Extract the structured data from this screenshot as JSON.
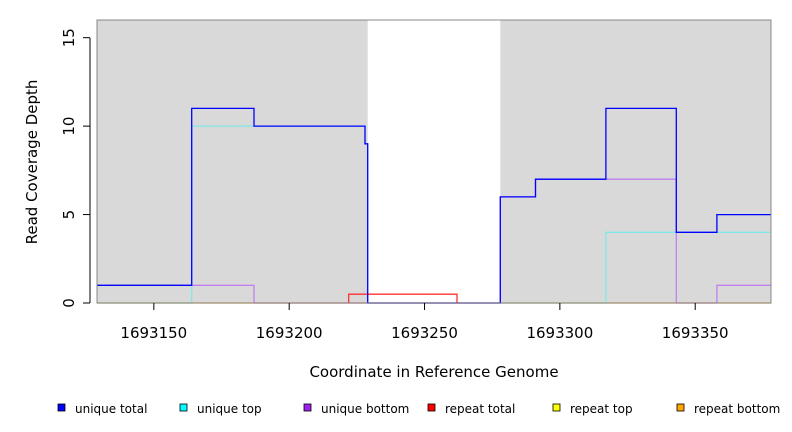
{
  "chart_data": {
    "type": "line",
    "title": "",
    "xlabel": "Coordinate in Reference Genome",
    "ylabel": "Read Coverage Depth",
    "xlim": [
      1693129,
      1693378
    ],
    "ylim": [
      0,
      16
    ],
    "x_ticks": [
      1693150,
      1693200,
      1693250,
      1693300,
      1693350
    ],
    "y_ticks": [
      0,
      5,
      10,
      15
    ],
    "shaded_regions": [
      [
        1693129,
        1693229
      ],
      [
        1693278,
        1693378
      ]
    ],
    "shade_color": "#d9d9d9",
    "legend_position": "bottom",
    "legend": [
      {
        "label": "unique total",
        "color": "#0000ff"
      },
      {
        "label": "unique top",
        "color": "#00ffff"
      },
      {
        "label": "unique bottom",
        "color": "#a020f0"
      },
      {
        "label": "repeat total",
        "color": "#ff0000"
      },
      {
        "label": "repeat top",
        "color": "#ffff00"
      },
      {
        "label": "repeat bottom",
        "color": "#ffa500"
      }
    ],
    "series": [
      {
        "name": "unique total",
        "color": "#0000ff",
        "points": [
          [
            1693129,
            1
          ],
          [
            1693164,
            1
          ],
          [
            1693164,
            11
          ],
          [
            1693187,
            11
          ],
          [
            1693187,
            10
          ],
          [
            1693228,
            10
          ],
          [
            1693228,
            9
          ],
          [
            1693229,
            9
          ],
          [
            1693229,
            0
          ],
          [
            1693278,
            0
          ],
          [
            1693278,
            6
          ],
          [
            1693291,
            6
          ],
          [
            1693291,
            7
          ],
          [
            1693317,
            7
          ],
          [
            1693317,
            11
          ],
          [
            1693343,
            11
          ],
          [
            1693343,
            4
          ],
          [
            1693358,
            4
          ],
          [
            1693358,
            5
          ],
          [
            1693378,
            5
          ]
        ]
      },
      {
        "name": "unique top",
        "color": "#80e8e8",
        "points": [
          [
            1693129,
            0
          ],
          [
            1693164,
            0
          ],
          [
            1693164,
            10
          ],
          [
            1693228,
            10
          ],
          [
            1693228,
            9
          ],
          [
            1693229,
            9
          ],
          [
            1693229,
            0
          ],
          [
            1693317,
            0
          ],
          [
            1693317,
            4
          ],
          [
            1693378,
            4
          ]
        ]
      },
      {
        "name": "unique bottom",
        "color": "#c080f0",
        "points": [
          [
            1693129,
            1
          ],
          [
            1693187,
            1
          ],
          [
            1693187,
            0
          ],
          [
            1693278,
            0
          ],
          [
            1693278,
            6
          ],
          [
            1693291,
            6
          ],
          [
            1693291,
            7
          ],
          [
            1693343,
            7
          ],
          [
            1693343,
            0
          ],
          [
            1693358,
            0
          ],
          [
            1693358,
            1
          ],
          [
            1693378,
            1
          ]
        ]
      },
      {
        "name": "repeat total",
        "color": "#ff3030",
        "points": [
          [
            1693222,
            0
          ],
          [
            1693222,
            0.5
          ],
          [
            1693262,
            0.5
          ],
          [
            1693262,
            0
          ]
        ]
      },
      {
        "name": "repeat bottom",
        "color": "#ffa500",
        "points": [
          [
            1693129,
            0
          ],
          [
            1693378,
            0
          ]
        ]
      }
    ]
  }
}
